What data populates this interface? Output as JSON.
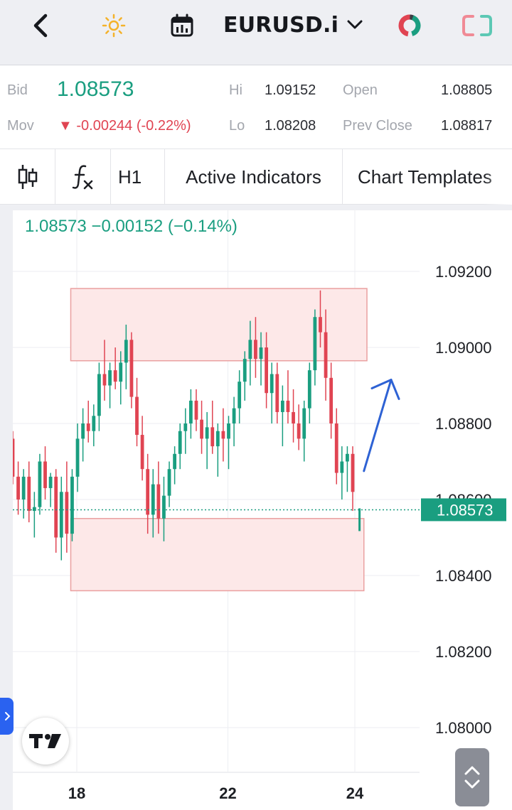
{
  "header": {
    "symbol": "EURUSD.i",
    "icons": [
      "back-arrow-icon",
      "sun-icon",
      "calendar-icon",
      "chevron-down-icon",
      "ring-chart-icon",
      "frame-icon"
    ]
  },
  "quote": {
    "bid_label": "Bid",
    "bid_value": "1.08573",
    "mov_label": "Mov",
    "mov_value": "▼ -0.00244 (-0.22%)",
    "hi_label": "Hi",
    "hi_value": "1.09152",
    "lo_label": "Lo",
    "lo_value": "1.08208",
    "open_label": "Open",
    "open_value": "1.08805",
    "prev_close_label": "Prev Close",
    "prev_close_value": "1.08817"
  },
  "toolbar": {
    "timeframe": "H1",
    "active_indicators": "Active Indicators",
    "chart_templates": "Chart Templates",
    "icons": [
      "candlestick-icon",
      "function-icon"
    ]
  },
  "colors": {
    "up": "#1a9e80",
    "down": "#e04452",
    "zone_fill": "#fde8e8",
    "zone_border": "#eaa0a0",
    "arrow": "#2e62d4",
    "accent": "#2a62f0"
  },
  "chart_data": {
    "type": "candlestick",
    "legend": "1.08573  −0.00152 (−0.14%)",
    "last_price": "1.08573",
    "last_price_value": 1.08573,
    "y_ticks": [
      "1.09200",
      "1.09000",
      "1.08800",
      "1.08400",
      "1.08200",
      "1.08000"
    ],
    "y_tick_values": [
      1.092,
      1.09,
      1.088,
      1.084,
      1.082,
      1.08
    ],
    "partial_tick": "1.08600",
    "partial_tick_value": 1.086,
    "x_ticks": [
      "18",
      "22",
      "24"
    ],
    "x_tick_positions": [
      0,
      100,
      184
    ],
    "zones": [
      {
        "x_start": -4,
        "x_end": 192,
        "y_high": 1.09155,
        "y_low": 1.08965
      },
      {
        "x_start": -4,
        "x_end": 190,
        "y_high": 1.0855,
        "y_low": 1.0836
      }
    ],
    "arrow": {
      "from": [
        190,
        1.08675
      ],
      "to": [
        208,
        1.08915
      ]
    },
    "candles_ohlc": [
      [
        1.0876,
        1.0878,
        1.0864,
        1.0866
      ],
      [
        1.0866,
        1.087,
        1.0856,
        1.086
      ],
      [
        1.086,
        1.0868,
        1.0855,
        1.0866
      ],
      [
        1.0866,
        1.087,
        1.0854,
        1.0857
      ],
      [
        1.0857,
        1.0862,
        1.085,
        1.0858
      ],
      [
        1.0858,
        1.0872,
        1.0856,
        1.087
      ],
      [
        1.087,
        1.0874,
        1.086,
        1.0863
      ],
      [
        1.0863,
        1.0867,
        1.0858,
        1.0866
      ],
      [
        1.0866,
        1.0868,
        1.0846,
        1.085
      ],
      [
        1.085,
        1.0866,
        1.0844,
        1.0862
      ],
      [
        1.0862,
        1.087,
        1.0846,
        1.0851
      ],
      [
        1.0851,
        1.0868,
        1.0849,
        1.0866
      ],
      [
        1.0866,
        1.088,
        1.0862,
        1.0876
      ],
      [
        1.0876,
        1.0884,
        1.087,
        1.088
      ],
      [
        1.088,
        1.0886,
        1.0875,
        1.0878
      ],
      [
        1.0878,
        1.0885,
        1.0874,
        1.0882
      ],
      [
        1.0882,
        1.0896,
        1.0878,
        1.0893
      ],
      [
        1.0893,
        1.0902,
        1.0886,
        1.089
      ],
      [
        1.089,
        1.0896,
        1.0884,
        1.0894
      ],
      [
        1.0894,
        1.09,
        1.0889,
        1.0891
      ],
      [
        1.0891,
        1.0899,
        1.0885,
        1.0896
      ],
      [
        1.0896,
        1.0906,
        1.0889,
        1.0902
      ],
      [
        1.0902,
        1.0904,
        1.0884,
        1.0887
      ],
      [
        1.0887,
        1.0892,
        1.0874,
        1.0877
      ],
      [
        1.0877,
        1.0882,
        1.0865,
        1.0868
      ],
      [
        1.0868,
        1.0872,
        1.0851,
        1.0856
      ],
      [
        1.0856,
        1.0868,
        1.085,
        1.0864
      ],
      [
        1.0864,
        1.087,
        1.0851,
        1.0855
      ],
      [
        1.0855,
        1.0866,
        1.0849,
        1.0861
      ],
      [
        1.0861,
        1.087,
        1.0858,
        1.0868
      ],
      [
        1.0868,
        1.0874,
        1.0864,
        1.0872
      ],
      [
        1.0872,
        1.088,
        1.0868,
        1.0878
      ],
      [
        1.0878,
        1.0884,
        1.0872,
        1.088
      ],
      [
        1.088,
        1.0889,
        1.0876,
        1.0886
      ],
      [
        1.0886,
        1.0889,
        1.0878,
        1.0881
      ],
      [
        1.0881,
        1.0886,
        1.0872,
        1.0876
      ],
      [
        1.0876,
        1.0883,
        1.0868,
        1.0879
      ],
      [
        1.0879,
        1.0886,
        1.0872,
        1.0874
      ],
      [
        1.0874,
        1.088,
        1.0866,
        1.0878
      ],
      [
        1.0878,
        1.0884,
        1.087,
        1.0876
      ],
      [
        1.0876,
        1.0882,
        1.0868,
        1.088
      ],
      [
        1.088,
        1.0887,
        1.0874,
        1.0884
      ],
      [
        1.0884,
        1.0894,
        1.088,
        1.0891
      ],
      [
        1.0891,
        1.0899,
        1.0886,
        1.0897
      ],
      [
        1.0897,
        1.0907,
        1.089,
        1.0902
      ],
      [
        1.0902,
        1.0908,
        1.0892,
        1.0897
      ],
      [
        1.0897,
        1.0904,
        1.089,
        1.09
      ],
      [
        1.09,
        1.0904,
        1.0884,
        1.0888
      ],
      [
        1.0888,
        1.0896,
        1.088,
        1.0893
      ],
      [
        1.0893,
        1.0896,
        1.088,
        1.0883
      ],
      [
        1.0883,
        1.089,
        1.0874,
        1.0886
      ],
      [
        1.0886,
        1.0894,
        1.088,
        1.0883
      ],
      [
        1.0883,
        1.0889,
        1.0875,
        1.088
      ],
      [
        1.088,
        1.0885,
        1.0873,
        1.0876
      ],
      [
        1.0876,
        1.0886,
        1.087,
        1.0884
      ],
      [
        1.0884,
        1.0896,
        1.088,
        1.0894
      ],
      [
        1.0894,
        1.091,
        1.089,
        1.0908
      ],
      [
        1.0908,
        1.0915,
        1.09,
        1.0904
      ],
      [
        1.0904,
        1.091,
        1.0886,
        1.0892
      ],
      [
        1.0892,
        1.0896,
        1.0876,
        1.088
      ],
      [
        1.088,
        1.0884,
        1.0864,
        1.0867
      ],
      [
        1.0867,
        1.0874,
        1.086,
        1.087
      ],
      [
        1.087,
        1.0874,
        1.0862,
        1.0872
      ],
      [
        1.0872,
        1.0874,
        1.0857,
        1.0862
      ]
    ]
  }
}
